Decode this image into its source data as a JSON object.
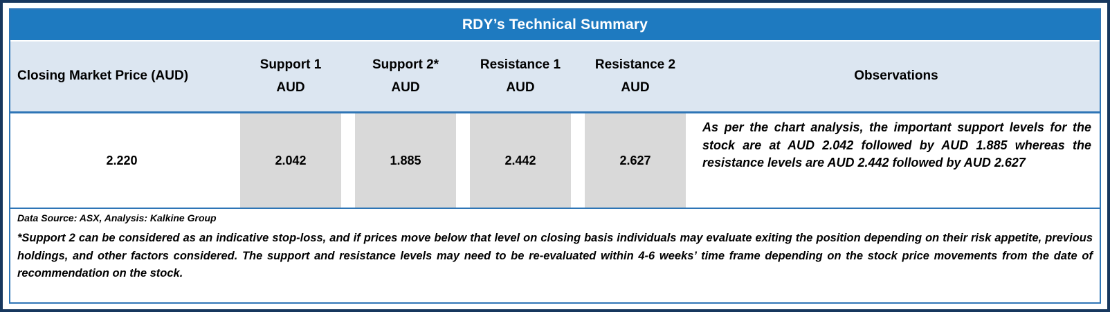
{
  "title": "RDY’s Technical Summary",
  "table": {
    "columns": [
      {
        "label": "Closing Market Price (AUD)",
        "sub": ""
      },
      {
        "label": "Support 1",
        "sub": "AUD"
      },
      {
        "label": "Support 2*",
        "sub": "AUD"
      },
      {
        "label": "Resistance 1",
        "sub": "AUD"
      },
      {
        "label": "Resistance 2",
        "sub": "AUD"
      },
      {
        "label": "Observations",
        "sub": ""
      }
    ],
    "row": {
      "closing_price": "2.220",
      "support_1": "2.042",
      "support_2": "1.885",
      "resistance_1": "2.442",
      "resistance_2": "2.627",
      "observations": "As per the chart analysis, the important support levels for the stock are at AUD 2.042 followed by AUD 1.885 whereas the resistance levels are AUD 2.442 followed by AUD 2.627"
    }
  },
  "footer": {
    "source": "Data Source: ASX, Analysis: Kalkine Group",
    "note": "*Support 2 can be considered as an indicative stop-loss, and if prices move below that level on closing basis individuals may evaluate exiting the position depending on their risk appetite, previous holdings, and other factors considered. The support and resistance levels may need to be re-evaluated within 4-6 weeks’ time frame depending on the stock price movements from the date of recommendation on the stock."
  },
  "colors": {
    "title_bg": "#1E7AC0",
    "title_text": "#FFFFFF",
    "header_bg": "#DCE6F1",
    "cell_gray": "#D9D9D9",
    "grid_border": "#2E75B6",
    "outer_border": "#17375E"
  }
}
